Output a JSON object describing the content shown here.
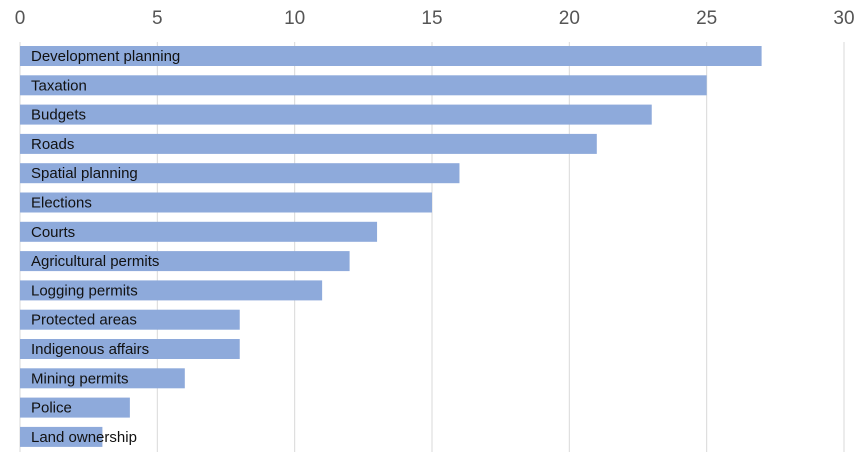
{
  "chart_data": {
    "type": "bar",
    "orientation": "horizontal",
    "title": "",
    "xlabel": "",
    "ylabel": "",
    "xlim": [
      0,
      30
    ],
    "x_ticks": [
      0,
      5,
      10,
      15,
      20,
      25,
      30
    ],
    "x_axis_position": "top",
    "grid": true,
    "bar_color": "#8eaadb",
    "categories": [
      "Development planning",
      "Taxation",
      "Budgets",
      "Roads",
      "Spatial planning",
      "Elections",
      "Courts",
      "Agricultural permits",
      "Logging permits",
      "Protected areas",
      "Indigenous affairs",
      "Mining permits",
      "Police",
      "Land ownership"
    ],
    "values": [
      27,
      25,
      23,
      21,
      16,
      15,
      13,
      12,
      11,
      8,
      8,
      6,
      4,
      3
    ]
  }
}
